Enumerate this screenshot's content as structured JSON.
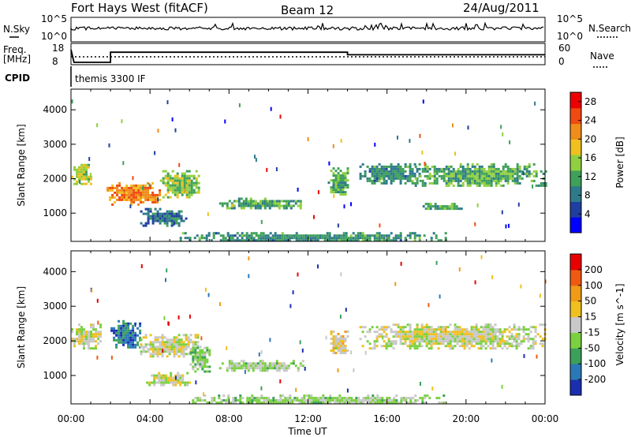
{
  "header": {
    "station": "Fort Hays West (fitACF)",
    "beam": "Beam 12",
    "date": "24/Aug/2011"
  },
  "noise_panel": {
    "left_label": "N.Sky",
    "left_ticks": [
      "10^5",
      "10^0"
    ],
    "right_label": "N.Search",
    "right_ticks": [
      "10^5",
      "10^0"
    ]
  },
  "freq_panel": {
    "left_label": "Freq.",
    "left_unit": "[MHz]",
    "left_ticks": [
      "18",
      "8"
    ],
    "right_label": "Nave",
    "right_ticks": [
      "60",
      "0"
    ],
    "freq_steps": [
      {
        "x": 0.0,
        "y": 18
      },
      {
        "x": 0.15,
        "y": 8
      },
      {
        "x": 2.0,
        "y": 8
      },
      {
        "x": 2.0,
        "y": 16
      },
      {
        "x": 14.0,
        "y": 16
      },
      {
        "x": 14.0,
        "y": 14
      },
      {
        "x": 24.0,
        "y": 14
      }
    ]
  },
  "cpid": {
    "label": "CPID",
    "program": "themis 3300 IF"
  },
  "chart_data": [
    {
      "type": "heatmap",
      "name": "Power",
      "xlabel": "Time UT",
      "ylabel": "Slant Range [km]",
      "x_ticks": [
        "00:00",
        "04:00",
        "08:00",
        "12:00",
        "16:00",
        "20:00",
        "00:00"
      ],
      "xlim": [
        0,
        24
      ],
      "y_ticks": [
        "1000",
        "2000",
        "3000",
        "4000"
      ],
      "ylim": [
        180,
        4600
      ],
      "colorbar": {
        "label": "Power [dB]",
        "ticks": [
          "4",
          "8",
          "12",
          "16",
          "20",
          "24",
          "28"
        ],
        "range": [
          0,
          30
        ],
        "colors": [
          "#0000ff",
          "#1f3fa0",
          "#2e7a8a",
          "#3fa05a",
          "#90d040",
          "#f0c020",
          "#f08c1a",
          "#f04a10",
          "#ee0000"
        ]
      },
      "echo_regions": [
        {
          "t0": 0.0,
          "t1": 1.0,
          "r0": 1850,
          "r1": 2500,
          "v": 16
        },
        {
          "t0": 1.8,
          "t1": 4.5,
          "r0": 1280,
          "r1": 1900,
          "v": 22
        },
        {
          "t0": 4.5,
          "t1": 6.5,
          "r0": 1450,
          "r1": 2250,
          "v": 14
        },
        {
          "t0": 3.5,
          "t1": 5.8,
          "r0": 650,
          "r1": 1150,
          "v": 8
        },
        {
          "t0": 7.5,
          "t1": 11.8,
          "r0": 1150,
          "r1": 1450,
          "v": 12
        },
        {
          "t0": 13.0,
          "t1": 14.0,
          "r0": 1550,
          "r1": 2400,
          "v": 12
        },
        {
          "t0": 14.6,
          "t1": 17.6,
          "r0": 1900,
          "r1": 2450,
          "v": 10
        },
        {
          "t0": 17.4,
          "t1": 24.0,
          "r0": 1800,
          "r1": 2450,
          "v": 12
        },
        {
          "t0": 17.8,
          "t1": 19.8,
          "r0": 1100,
          "r1": 1300,
          "v": 12
        },
        {
          "t0": 5.5,
          "t1": 19.0,
          "r0": 180,
          "r1": 450,
          "v": 10
        }
      ]
    },
    {
      "type": "heatmap",
      "name": "Velocity",
      "xlabel": "Time UT",
      "ylabel": "Slant Range [km]",
      "x_ticks": [
        "00:00",
        "04:00",
        "08:00",
        "12:00",
        "16:00",
        "20:00",
        "00:00"
      ],
      "xlim": [
        0,
        24
      ],
      "y_ticks": [
        "1000",
        "2000",
        "3000",
        "4000"
      ],
      "ylim": [
        180,
        4600
      ],
      "colorbar": {
        "label": "Velocity [m s^-1]",
        "ticks": [
          "200",
          "100",
          "50",
          "15",
          "-15",
          "-50",
          "-100",
          "-200"
        ],
        "range": [
          -250,
          250
        ],
        "colors": [
          "#1a2fb0",
          "#2a78b8",
          "#3aa05a",
          "#7ad040",
          "#c8c8c8",
          "#f0c020",
          "#f09a18",
          "#f05a10",
          "#e80000"
        ]
      },
      "echo_regions": [
        {
          "t0": 0.0,
          "t1": 1.5,
          "r0": 1800,
          "r1": 2500,
          "v": 0
        },
        {
          "t0": 2.0,
          "t1": 3.5,
          "r0": 1800,
          "r1": 2600,
          "v": -160
        },
        {
          "t0": 3.5,
          "t1": 6.5,
          "r0": 1550,
          "r1": 2200,
          "v": 0
        },
        {
          "t0": 6.0,
          "t1": 7.0,
          "r0": 1100,
          "r1": 1900,
          "v": -60
        },
        {
          "t0": 3.8,
          "t1": 6.0,
          "r0": 700,
          "r1": 1100,
          "v": 0
        },
        {
          "t0": 7.5,
          "t1": 11.8,
          "r0": 1150,
          "r1": 1450,
          "v": -30
        },
        {
          "t0": 13.0,
          "t1": 14.0,
          "r0": 1600,
          "r1": 2300,
          "v": 30
        },
        {
          "t0": 14.6,
          "t1": 24.0,
          "r0": 1800,
          "r1": 2500,
          "v": 0
        },
        {
          "t0": 6.0,
          "t1": 19.0,
          "r0": 180,
          "r1": 450,
          "v": -40
        }
      ]
    }
  ]
}
